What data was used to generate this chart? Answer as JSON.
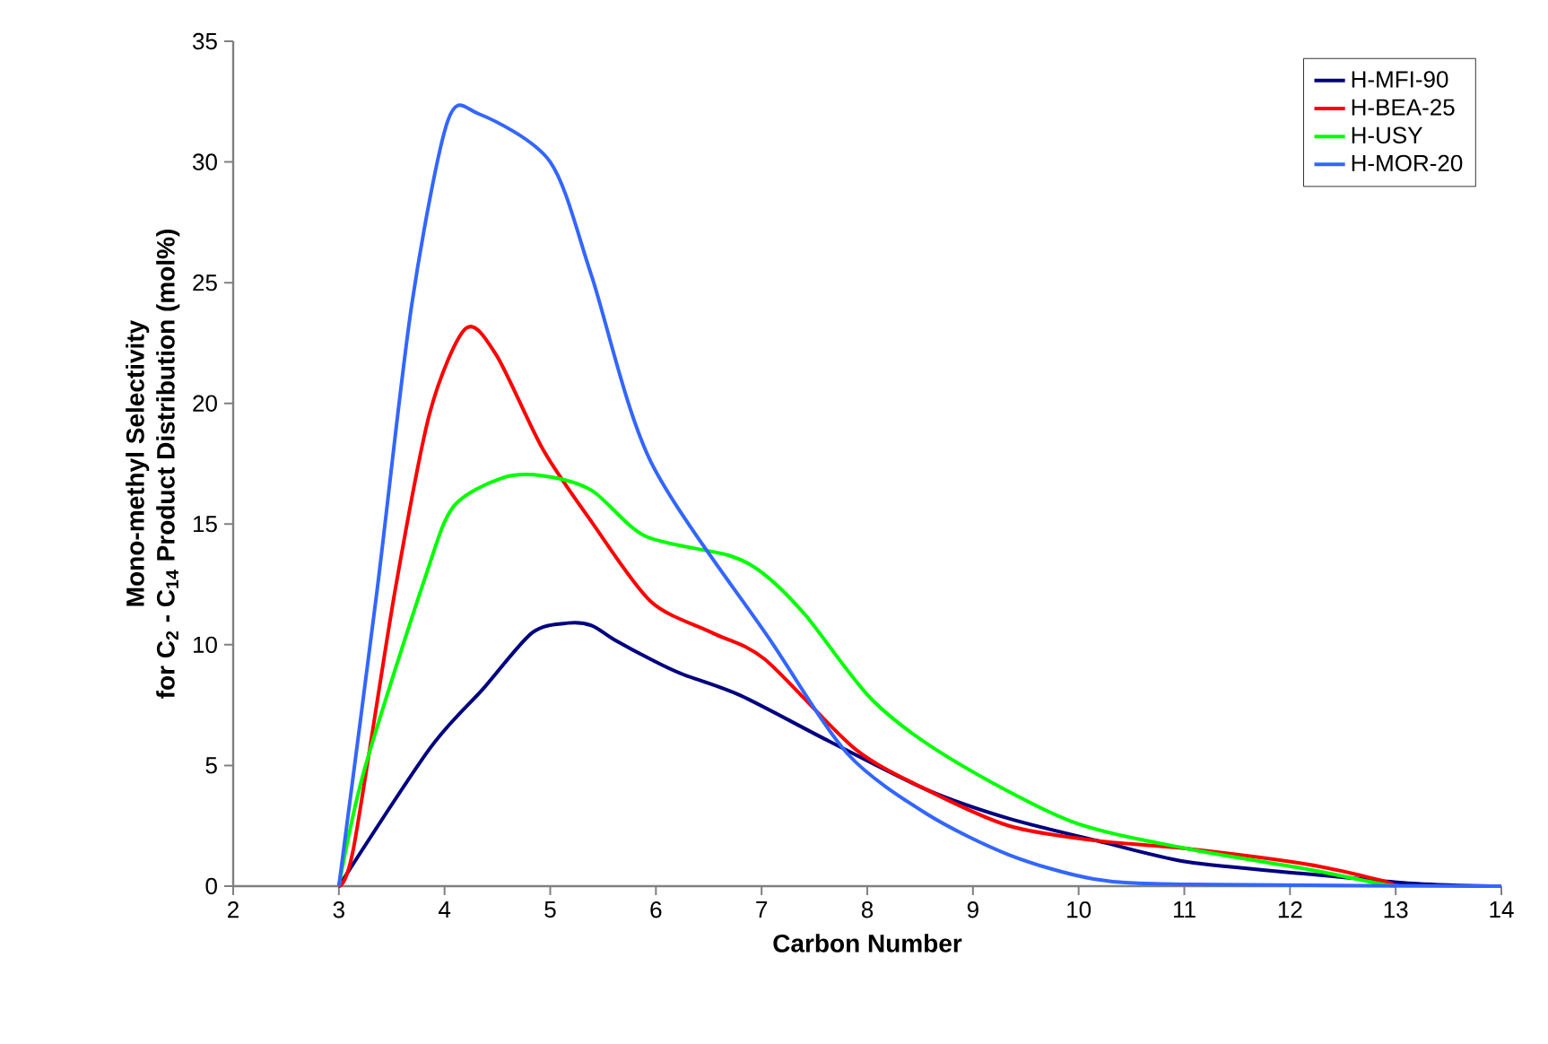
{
  "chart_data": {
    "type": "line",
    "xlabel": "Carbon Number",
    "ylabel": [
      "Mono-methyl Selectivity",
      "for C$_{2}$ - C$_{14}$ Product Distribution (mol%)"
    ],
    "xlim": [
      2,
      14
    ],
    "xticks": [
      2,
      3,
      4,
      5,
      6,
      7,
      8,
      9,
      10,
      11,
      12,
      13,
      14
    ],
    "ylim": [
      0,
      35
    ],
    "yticks": [
      0,
      5,
      10,
      15,
      20,
      25,
      30,
      35
    ],
    "grid": false,
    "legend": "top right",
    "marker": "none",
    "line_style": "solid",
    "series": [
      {
        "name": "H-MFI-90",
        "color": "#000080",
        "x": [
          3,
          3.86,
          4.37,
          4.83,
          5.17,
          5.39,
          5.61,
          5.95,
          6.24,
          6.8,
          7.64,
          8.56,
          9.34,
          10.25,
          11.03,
          12.17,
          13.2,
          13.9
        ],
        "values": [
          0,
          5.7,
          8.2,
          10.5,
          10.9,
          10.8,
          10.2,
          9.4,
          8.8,
          7.9,
          6.0,
          4.0,
          2.8,
          1.8,
          1.0,
          0.5,
          0.1,
          0
        ]
      },
      {
        "name": "H-BEA-25",
        "color": "#ff0000",
        "x": [
          3,
          3.14,
          3.53,
          3.86,
          4.2,
          4.49,
          4.93,
          5.39,
          5.95,
          6.53,
          7.03,
          7.88,
          8.56,
          9.34,
          10.14,
          11.03,
          12.17,
          12.85,
          13
        ],
        "values": [
          0,
          1.6,
          12.2,
          19.6,
          23.1,
          22.0,
          18.1,
          15.1,
          11.8,
          10.5,
          9.4,
          5.7,
          4.0,
          2.5,
          1.9,
          1.55,
          0.9,
          0.25,
          0
        ]
      },
      {
        "name": "H-USY",
        "color": "#00ff00",
        "x": [
          3,
          3.24,
          3.81,
          4.08,
          4.54,
          4.93,
          5.39,
          5.9,
          6.69,
          7.03,
          7.42,
          8.05,
          8.78,
          9.92,
          11.03,
          12.17,
          12.85,
          13
        ],
        "values": [
          0,
          4.8,
          12.7,
          15.7,
          16.9,
          17.0,
          16.4,
          14.5,
          13.7,
          12.9,
          11.2,
          7.7,
          5.3,
          2.7,
          1.55,
          0.7,
          0.1,
          0
        ]
      },
      {
        "name": "H-MOR-20",
        "color": "#3366ff",
        "x": [
          3,
          3.36,
          3.69,
          4.03,
          4.32,
          5.0,
          5.39,
          5.95,
          7.08,
          7.81,
          8.56,
          9.34,
          10.14,
          11.03,
          14
        ],
        "values": [
          0,
          12.2,
          24.1,
          31.7,
          32.0,
          30.0,
          25.3,
          17.6,
          10.2,
          5.5,
          3.0,
          1.3,
          0.3,
          0.07,
          0
        ]
      }
    ]
  }
}
